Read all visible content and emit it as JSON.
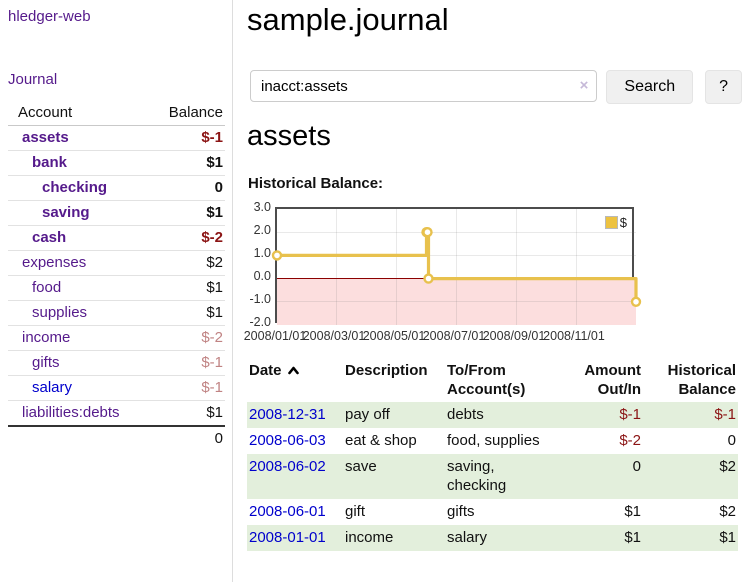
{
  "app": {
    "brand": "hledger-web",
    "nav_journal": "Journal"
  },
  "sidebar": {
    "headers": {
      "account": "Account",
      "balance": "Balance"
    },
    "accounts": [
      {
        "name": "assets",
        "balance": "$-1"
      },
      {
        "name": "bank",
        "balance": "$1"
      },
      {
        "name": "checking",
        "balance": "0"
      },
      {
        "name": "saving",
        "balance": "$1"
      },
      {
        "name": "cash",
        "balance": "$-2"
      },
      {
        "name": "expenses",
        "balance": "$2"
      },
      {
        "name": "food",
        "balance": "$1"
      },
      {
        "name": "supplies",
        "balance": "$1"
      },
      {
        "name": "income",
        "balance": "$-2"
      },
      {
        "name": "gifts",
        "balance": "$-1"
      },
      {
        "name": "salary",
        "balance": "$-1"
      },
      {
        "name": "liabilities:debts",
        "balance": "$1"
      }
    ],
    "total": "0"
  },
  "header": {
    "title": "sample.journal"
  },
  "search": {
    "query": "inacct:assets",
    "clear_icon": "×",
    "button_label": "Search",
    "help_label": "?"
  },
  "account_page": {
    "heading": "assets",
    "chart_label": "Historical Balance:"
  },
  "chart_data": {
    "type": "line",
    "step": true,
    "title": "Historical Balance:",
    "series": [
      {
        "name": "$",
        "color": "#e8c14d",
        "points": [
          [
            "2008-01-01",
            1
          ],
          [
            "2008-06-01",
            2
          ],
          [
            "2008-06-02",
            2
          ],
          [
            "2008-06-03",
            0
          ],
          [
            "2008-12-31",
            -1
          ]
        ]
      }
    ],
    "xrange": [
      "2008-01-01",
      "2008-12-31"
    ],
    "ylim": [
      -2,
      3
    ],
    "yticks": [
      "3.0",
      "2.0",
      "1.0",
      "0.0",
      "-1.0",
      "-2.0"
    ],
    "xticks": [
      "2008/01/01",
      "2008/03/01",
      "2008/05/01",
      "2008/07/01",
      "2008/09/01",
      "2008/11/01"
    ],
    "grid": true,
    "legend_position": "top-right",
    "negative_fill": "#fcdede",
    "zero_line_color": "#8b0000"
  },
  "register": {
    "headers": {
      "date": "Date",
      "description": "Description",
      "accounts": "To/From Account(s)",
      "amount": "Amount Out/In",
      "balance": "Historical Balance"
    },
    "rows": [
      {
        "date": "2008-12-31",
        "description": "pay off",
        "accounts": "debts",
        "amount": "$-1",
        "balance": "$-1"
      },
      {
        "date": "2008-06-03",
        "description": "eat & shop",
        "accounts": "food, supplies",
        "amount": "$-2",
        "balance": "0"
      },
      {
        "date": "2008-06-02",
        "description": "save",
        "accounts": "saving, checking",
        "amount": "0",
        "balance": "$2"
      },
      {
        "date": "2008-06-01",
        "description": "gift",
        "accounts": "gifts",
        "amount": "$1",
        "balance": "$2"
      },
      {
        "date": "2008-01-01",
        "description": "income",
        "accounts": "salary",
        "amount": "$1",
        "balance": "$1"
      }
    ]
  },
  "colors": {
    "accent_purple": "#551a8b",
    "link_blue": "#0000cc",
    "negative_strong": "#8b1414",
    "negative_muted": "#c08383",
    "row_green": "#e3efdc",
    "series_gold": "#e8c14d",
    "chart_negative_fill": "#fcdede",
    "chart_zero_line": "#8b0000"
  }
}
